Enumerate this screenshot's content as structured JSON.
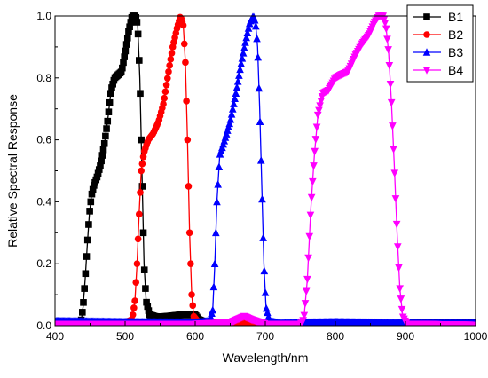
{
  "chart_data": {
    "type": "line",
    "title": "",
    "xlabel": "Wavelength/nm",
    "ylabel": "Relative Spectral Response",
    "xlim": [
      400,
      1000
    ],
    "ylim": [
      0,
      1.0
    ],
    "x_ticks": [
      "400",
      "500",
      "600",
      "700",
      "800",
      "900",
      "1000"
    ],
    "y_ticks": [
      "0.0",
      "0.2",
      "0.4",
      "0.6",
      "0.8",
      "1.0"
    ],
    "grid": false,
    "legend_position": "top-right",
    "series": [
      {
        "name": "B1",
        "color": "#000000",
        "marker": "square",
        "points": [
          [
            400,
            0.005
          ],
          [
            430,
            0.005
          ],
          [
            437,
            0.01
          ],
          [
            440,
            0.06
          ],
          [
            443,
            0.15
          ],
          [
            446,
            0.26
          ],
          [
            449,
            0.36
          ],
          [
            452,
            0.42
          ],
          [
            455,
            0.45
          ],
          [
            460,
            0.48
          ],
          [
            465,
            0.52
          ],
          [
            470,
            0.58
          ],
          [
            475,
            0.66
          ],
          [
            480,
            0.76
          ],
          [
            485,
            0.8
          ],
          [
            490,
            0.81
          ],
          [
            495,
            0.82
          ],
          [
            500,
            0.88
          ],
          [
            505,
            0.95
          ],
          [
            510,
            1.0
          ],
          [
            515,
            1.0
          ],
          [
            518,
            0.97
          ],
          [
            521,
            0.8
          ],
          [
            524,
            0.5
          ],
          [
            527,
            0.2
          ],
          [
            530,
            0.08
          ],
          [
            535,
            0.035
          ],
          [
            545,
            0.028
          ],
          [
            560,
            0.03
          ],
          [
            580,
            0.035
          ],
          [
            600,
            0.035
          ],
          [
            605,
            0.02
          ],
          [
            620,
            0.005
          ],
          [
            700,
            0.005
          ],
          [
            800,
            0.007
          ],
          [
            900,
            0.008
          ],
          [
            1000,
            0.009
          ]
        ]
      },
      {
        "name": "B2",
        "color": "#ff0000",
        "marker": "circle",
        "points": [
          [
            400,
            0.008
          ],
          [
            500,
            0.01
          ],
          [
            510,
            0.02
          ],
          [
            514,
            0.08
          ],
          [
            517,
            0.2
          ],
          [
            520,
            0.36
          ],
          [
            523,
            0.5
          ],
          [
            527,
            0.56
          ],
          [
            533,
            0.6
          ],
          [
            540,
            0.62
          ],
          [
            548,
            0.66
          ],
          [
            555,
            0.72
          ],
          [
            562,
            0.82
          ],
          [
            568,
            0.9
          ],
          [
            574,
            0.96
          ],
          [
            579,
            1.0
          ],
          [
            583,
            0.97
          ],
          [
            586,
            0.85
          ],
          [
            589,
            0.6
          ],
          [
            592,
            0.3
          ],
          [
            595,
            0.1
          ],
          [
            598,
            0.03
          ],
          [
            605,
            0.01
          ],
          [
            700,
            0.008
          ],
          [
            800,
            0.006
          ],
          [
            900,
            0.006
          ],
          [
            1000,
            0.006
          ]
        ]
      },
      {
        "name": "B3",
        "color": "#0000ff",
        "marker": "triangle-up",
        "points": [
          [
            400,
            0.015
          ],
          [
            500,
            0.012
          ],
          [
            600,
            0.01
          ],
          [
            620,
            0.015
          ],
          [
            625,
            0.05
          ],
          [
            628,
            0.2
          ],
          [
            631,
            0.4
          ],
          [
            635,
            0.55
          ],
          [
            642,
            0.6
          ],
          [
            650,
            0.66
          ],
          [
            658,
            0.75
          ],
          [
            665,
            0.84
          ],
          [
            672,
            0.92
          ],
          [
            678,
            0.98
          ],
          [
            683,
            1.0
          ],
          [
            686,
            0.98
          ],
          [
            689,
            0.9
          ],
          [
            692,
            0.7
          ],
          [
            695,
            0.45
          ],
          [
            698,
            0.2
          ],
          [
            701,
            0.06
          ],
          [
            706,
            0.015
          ],
          [
            720,
            0.008
          ],
          [
            800,
            0.012
          ],
          [
            900,
            0.008
          ],
          [
            1000,
            0.008
          ]
        ]
      },
      {
        "name": "B4",
        "color": "#ff00ff",
        "marker": "triangle-down",
        "points": [
          [
            400,
            0.005
          ],
          [
            600,
            0.005
          ],
          [
            650,
            0.01
          ],
          [
            660,
            0.02
          ],
          [
            670,
            0.03
          ],
          [
            680,
            0.02
          ],
          [
            700,
            0.005
          ],
          [
            750,
            0.005
          ],
          [
            755,
            0.02
          ],
          [
            760,
            0.15
          ],
          [
            765,
            0.38
          ],
          [
            770,
            0.55
          ],
          [
            775,
            0.68
          ],
          [
            782,
            0.75
          ],
          [
            790,
            0.76
          ],
          [
            800,
            0.8
          ],
          [
            808,
            0.81
          ],
          [
            818,
            0.82
          ],
          [
            828,
            0.87
          ],
          [
            838,
            0.91
          ],
          [
            848,
            0.94
          ],
          [
            856,
            0.98
          ],
          [
            862,
            1.0
          ],
          [
            868,
            1.0
          ],
          [
            872,
            0.97
          ],
          [
            876,
            0.88
          ],
          [
            880,
            0.72
          ],
          [
            884,
            0.52
          ],
          [
            888,
            0.3
          ],
          [
            892,
            0.12
          ],
          [
            896,
            0.03
          ],
          [
            902,
            0.005
          ],
          [
            1000,
            0.002
          ]
        ]
      }
    ]
  }
}
